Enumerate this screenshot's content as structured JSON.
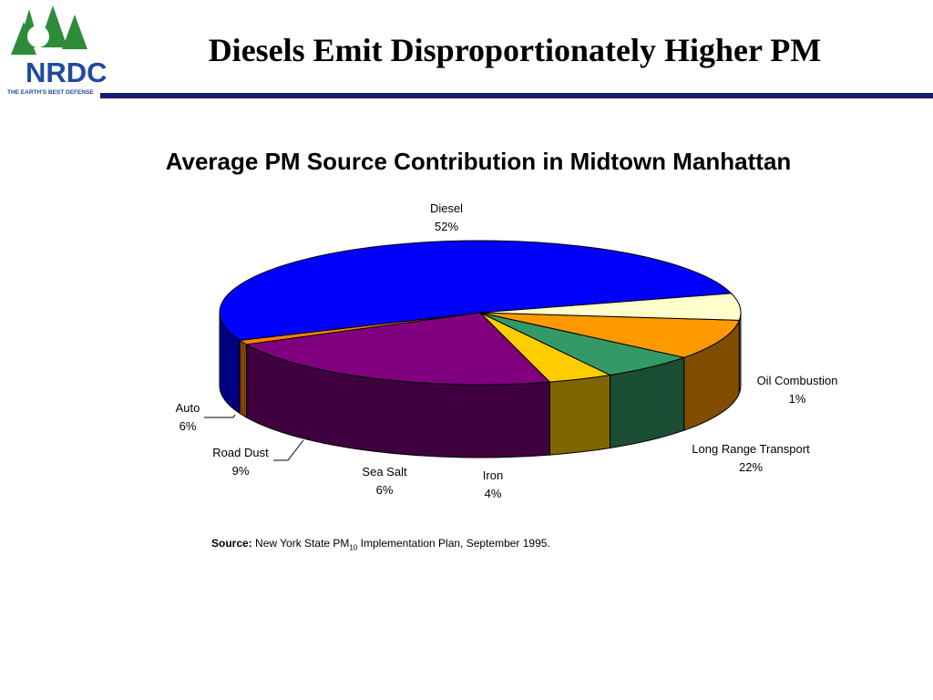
{
  "header": {
    "logo_text": "NRDC",
    "logo_tagline": "THE EARTH'S BEST DEFENSE",
    "title": "Diesels Emit Disproportionately Higher PM"
  },
  "chart_data": {
    "type": "pie",
    "title": "Average PM Source Contribution in Midtown Manhattan",
    "style": "3d",
    "slices": [
      {
        "name": "Diesel",
        "value": 52,
        "label": "52%",
        "color": "#0000ff"
      },
      {
        "name": "Oil Combustion",
        "value": 1,
        "label": "1%",
        "color": "#ff7f00"
      },
      {
        "name": "Long Range Transport",
        "value": 22,
        "label": "22%",
        "color": "#800080"
      },
      {
        "name": "Iron",
        "value": 4,
        "label": "4%",
        "color": "#ffcc00"
      },
      {
        "name": "Sea Salt",
        "value": 6,
        "label": "6%",
        "color": "#339966"
      },
      {
        "name": "Road Dust",
        "value": 9,
        "label": "9%",
        "color": "#ff9900"
      },
      {
        "name": "Auto",
        "value": 6,
        "label": "6%",
        "color": "#ffffcc"
      }
    ]
  },
  "footer": {
    "source_label": "Source:",
    "source_text_before": "New York State PM",
    "source_subscript": "10",
    "source_text_after": " Implementation Plan, September 1995."
  }
}
